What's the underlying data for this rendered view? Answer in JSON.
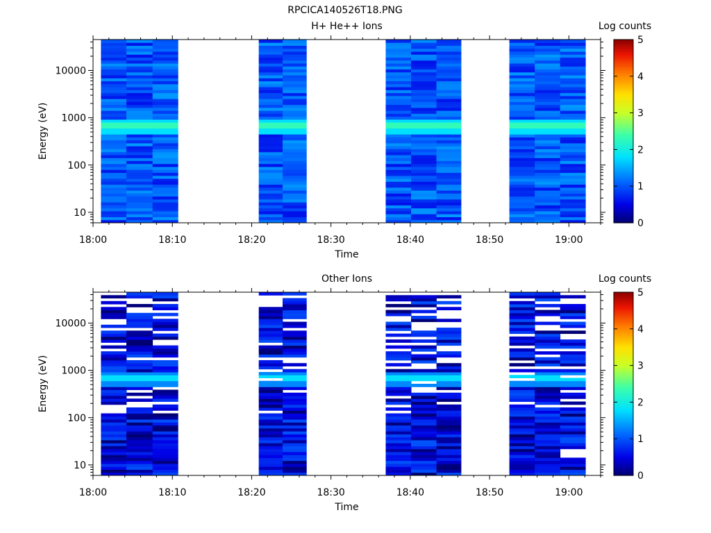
{
  "figure": {
    "title": "RPCICA140526T18.PNG"
  },
  "chart_data": [
    {
      "type": "heatmap",
      "title": "H+ He++ Ions",
      "xlabel": "Time",
      "ylabel": "Energy (eV)",
      "x_tick_labels": [
        "18:00",
        "18:10",
        "18:20",
        "18:30",
        "18:40",
        "18:50",
        "19:00"
      ],
      "xlim_minutes_after_1800": [
        0,
        64
      ],
      "y_scale": "log",
      "ylim": [
        6,
        45000
      ],
      "y_tick_labels": [
        "10",
        "100",
        "1000",
        "10000"
      ],
      "colorbar": {
        "label": "Log counts",
        "range": [
          0,
          5
        ],
        "tick_labels": [
          "0",
          "1",
          "2",
          "3",
          "4",
          "5"
        ]
      },
      "data_blocks_minutes_after_1800": [
        [
          1,
          10.7
        ],
        [
          20.9,
          26.9
        ],
        [
          36.9,
          46.4
        ],
        [
          52.5,
          62.1
        ]
      ],
      "observation_gaps": [
        [
          "18:10",
          "18:20"
        ],
        [
          "18:27",
          "18:37"
        ],
        [
          "18:46",
          "18:52"
        ]
      ],
      "flux_peak": {
        "energy_eV": 650,
        "log_counts": 2.3
      },
      "typical_log_counts": [
        0.6,
        1.4
      ],
      "missing_data_fraction": 0.0
    },
    {
      "type": "heatmap",
      "title": "Other Ions",
      "xlabel": "Time",
      "ylabel": "Energy (eV)",
      "x_tick_labels": [
        "18:00",
        "18:10",
        "18:20",
        "18:30",
        "18:40",
        "18:50",
        "19:00"
      ],
      "xlim_minutes_after_1800": [
        0,
        64
      ],
      "y_scale": "log",
      "ylim": [
        6,
        45000
      ],
      "y_tick_labels": [
        "10",
        "100",
        "1000",
        "10000"
      ],
      "colorbar": {
        "label": "Log counts",
        "range": [
          0,
          5
        ],
        "tick_labels": [
          "0",
          "1",
          "2",
          "3",
          "4",
          "5"
        ]
      },
      "data_blocks_minutes_after_1800": [
        [
          1,
          10.7
        ],
        [
          20.9,
          26.9
        ],
        [
          36.9,
          46.4
        ],
        [
          52.5,
          62.1
        ]
      ],
      "observation_gaps": [
        [
          "18:10",
          "18:20"
        ],
        [
          "18:27",
          "18:37"
        ],
        [
          "18:46",
          "18:52"
        ]
      ],
      "flux_peak": {
        "energy_eV": 650,
        "log_counts": 1.8
      },
      "typical_log_counts": [
        0.0,
        1.0
      ],
      "missing_data_fraction": 0.22
    }
  ]
}
